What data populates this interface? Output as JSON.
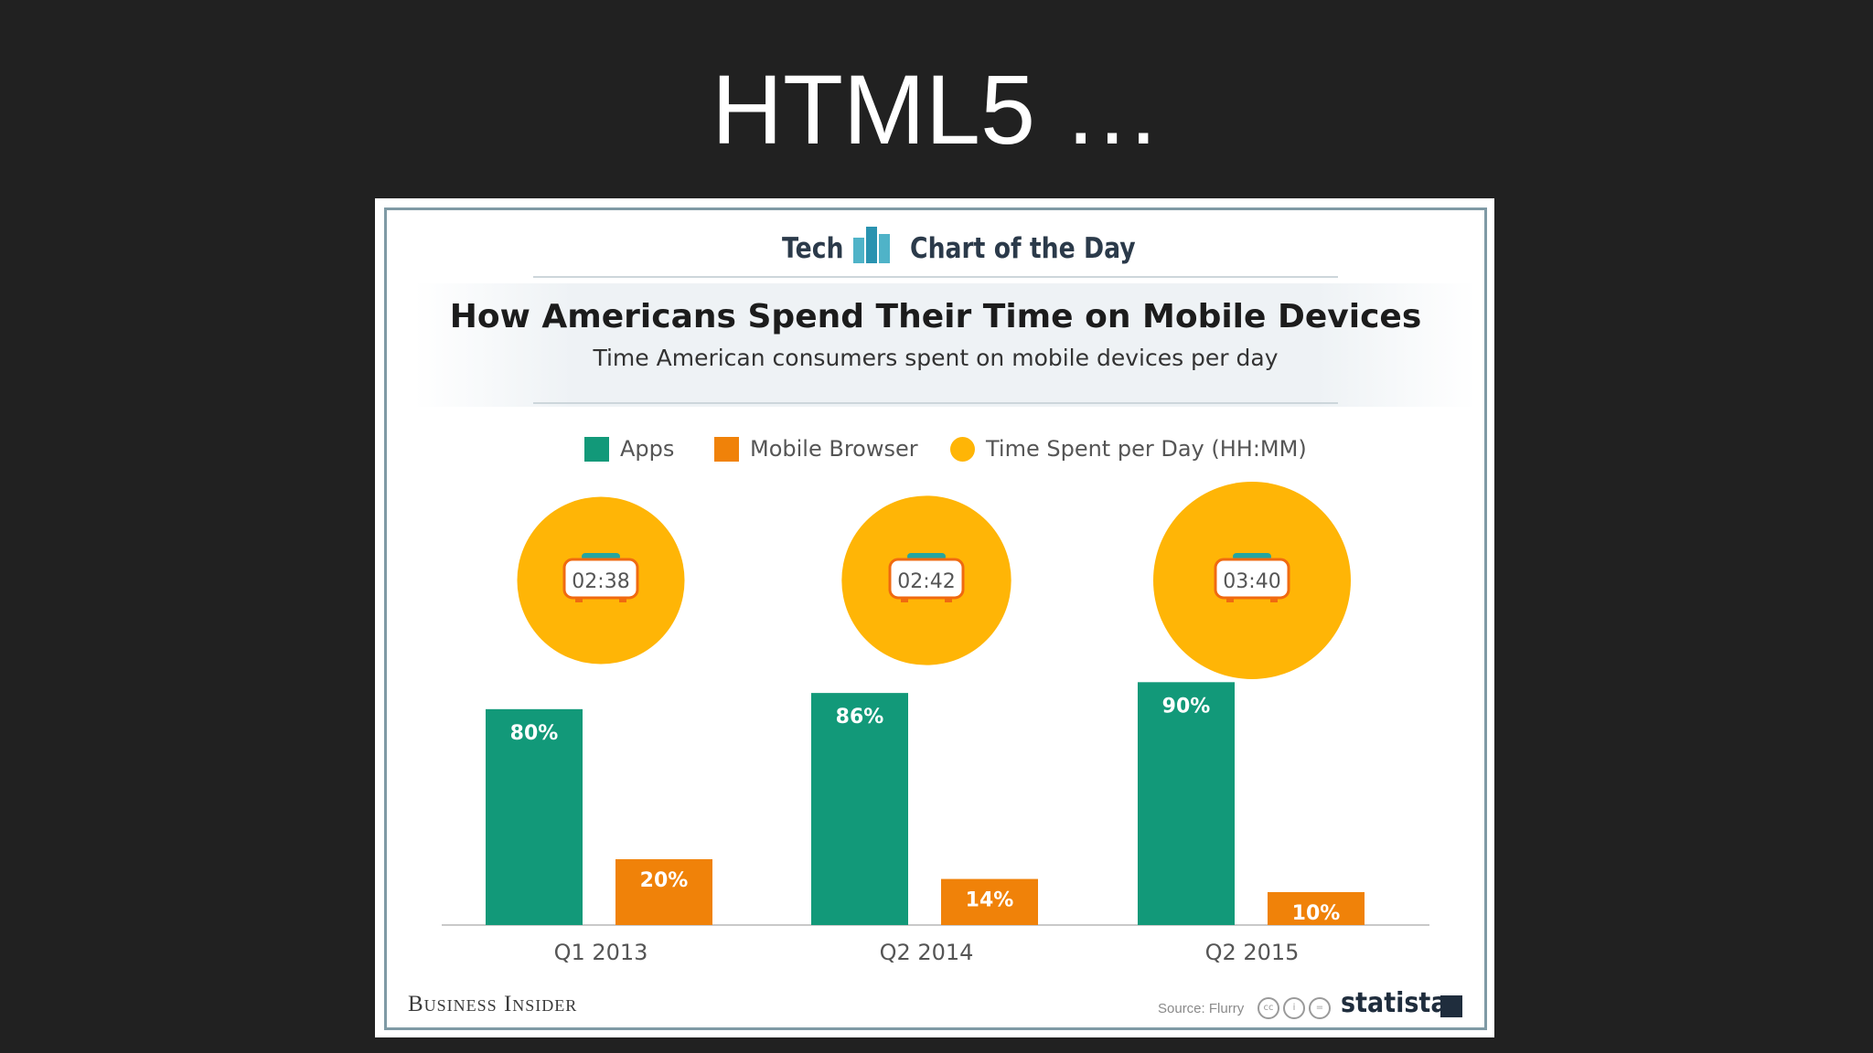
{
  "slide": {
    "title": "HTML5 …"
  },
  "header": {
    "left": "Tech",
    "right": "Chart of the Day",
    "icon": "bar-chart-icon"
  },
  "colors": {
    "apps": "#129979",
    "browser": "#f08209",
    "time": "#ffb506",
    "axis": "#c9c9c9"
  },
  "footer": {
    "brand": "Business Insider",
    "source": "Source: Flurry",
    "license_icons": [
      "cc",
      "i",
      "="
    ],
    "logo": "statista"
  },
  "chart_data": {
    "type": "bar",
    "title": "How Americans Spend Their Time on Mobile Devices",
    "subtitle": "Time American consumers spent on mobile devices per day",
    "categories": [
      "Q1 2013",
      "Q2 2014",
      "Q2 2015"
    ],
    "series": [
      {
        "name": "Apps",
        "values": [
          80,
          86,
          90
        ],
        "labels": [
          "80%",
          "86%",
          "90%"
        ]
      },
      {
        "name": "Mobile Browser",
        "values": [
          20,
          14,
          10
        ],
        "labels": [
          "20%",
          "14%",
          "10%"
        ]
      }
    ],
    "time_spent": {
      "name": "Time Spent per Day (HH:MM)",
      "values": [
        "02:38",
        "02:42",
        "03:40"
      ]
    },
    "legend": [
      "Apps",
      "Mobile Browser",
      "Time Spent per Day (HH:MM)"
    ],
    "ylim": [
      0,
      100
    ],
    "grid": false,
    "legend_position": "top"
  }
}
